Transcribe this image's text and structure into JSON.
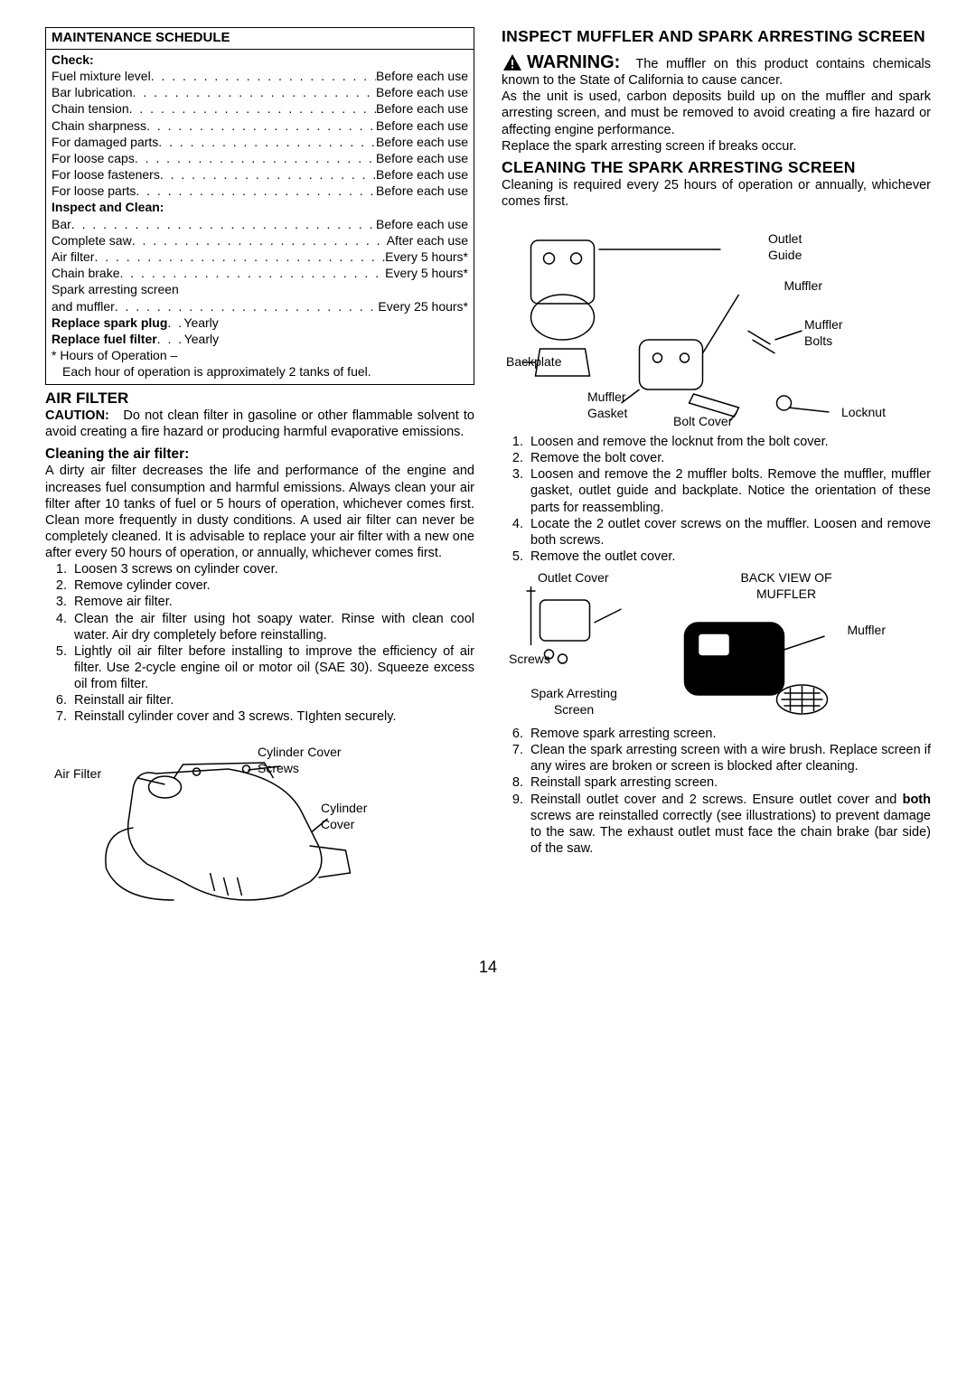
{
  "schedule": {
    "title": "MAINTENANCE SCHEDULE",
    "check_label": "Check:",
    "check_items": [
      {
        "name": "Fuel mixture level",
        "freq": "Before each use"
      },
      {
        "name": "Bar lubrication",
        "freq": "Before each use"
      },
      {
        "name": "Chain tension",
        "freq": "Before each use"
      },
      {
        "name": "Chain sharpness",
        "freq": "Before each use"
      },
      {
        "name": "For damaged parts",
        "freq": "Before each use"
      },
      {
        "name": "For loose caps",
        "freq": "Before each use"
      },
      {
        "name": "For loose fasteners",
        "freq": "Before each use"
      },
      {
        "name": "For loose parts",
        "freq": "Before each use"
      }
    ],
    "inspect_label": "Inspect and Clean:",
    "inspect_items": [
      {
        "name": "Bar",
        "freq": "Before each use"
      },
      {
        "name": "Complete saw",
        "freq": "After each use"
      },
      {
        "name": "Air filter",
        "freq": "Every 5 hours*"
      },
      {
        "name": "Chain brake",
        "freq": "Every 5 hours*"
      }
    ],
    "spark_line": "Spark arresting screen",
    "spark_row": {
      "name": "and muffler",
      "freq": "Every 25 hours*"
    },
    "replace_plug": {
      "name": "Replace spark plug",
      "freq": "Yearly"
    },
    "replace_filter": {
      "name": "Replace fuel filter",
      "freq": "Yearly"
    },
    "footnote1": "* Hours of Operation –",
    "footnote2": "Each hour of operation is approximately 2 tanks of fuel."
  },
  "airfilter": {
    "title": "AIR FILTER",
    "caution_label": "CAUTION:",
    "caution_text": "Do not clean filter in gasoline or other flammable solvent to avoid creating a fire hazard or producing harmful evaporative emissions.",
    "clean_title": "Cleaning the air filter:",
    "clean_para": "A dirty air filter decreases the life and performance of the engine and increases fuel consumption and harmful emissions. Always clean your air filter after 10 tanks of fuel or 5 hours of operation, whichever comes first. Clean more frequently in dusty conditions. A used air filter can never be completely cleaned. It is advisable to replace your air filter with a new one after every 50 hours of operation, or annually, whichever comes first.",
    "steps": [
      "Loosen 3 screws on cylinder cover.",
      "Remove cylinder cover.",
      "Remove air filter.",
      "Clean the air filter using hot soapy water. Rinse with clean cool water. Air dry completely before reinstalling.",
      "Lightly oil air filter before installing to improve the efficiency of air filter. Use 2-cycle engine oil or motor oil (SAE 30). Squeeze excess oil from filter.",
      "Reinstall air filter.",
      "Reinstall cylinder cover and 3 screws. TIghten securely."
    ],
    "labels": {
      "air_filter": "Air Filter",
      "cyl_cover_screws": "Cylinder Cover Screws",
      "cyl_cover": "Cylinder Cover"
    }
  },
  "muffler": {
    "title": "INSPECT MUFFLER AND SPARK ARRESTING SCREEN",
    "warning_label": "WARNING:",
    "warning_text": "The muffler on this product contains chemicals known to the State of California to cause cancer.",
    "para1": "As the unit is used, carbon deposits build up on the muffler and spark arresting screen, and must be removed to avoid creating a fire hazard or affecting engine performance.",
    "para2": "Replace the spark arresting screen if breaks occur.",
    "clean_title": "CLEANING THE SPARK ARRESTING SCREEN",
    "clean_text": "Cleaning is required every 25 hours of operation or annually, whichever comes first.",
    "labels1": {
      "outlet_guide": "Outlet Guide",
      "muffler": "Muffler",
      "muffler_bolts": "Muffler Bolts",
      "backplate": "Backplate",
      "muffler_gasket": "Muffler Gasket",
      "bolt_cover": "Bolt Cover",
      "locknut": "Locknut"
    },
    "steps1": [
      "Loosen and remove the locknut from the bolt cover.",
      "Remove the bolt cover.",
      "Loosen and remove the 2 muffler bolts. Remove the muffler, muffler gasket, outlet guide and backplate. Notice the orientation of these parts for reassembling.",
      "Locate the 2 outlet cover screws on the muffler. Loosen and remove both screws.",
      "Remove the outlet cover."
    ],
    "labels2": {
      "outlet_cover": "Outlet Cover",
      "back_view": "BACK VIEW OF MUFFLER",
      "muffler": "Muffler",
      "screws": "Screws",
      "spark_screen": "Spark Arresting Screen"
    },
    "steps2": [
      "Remove spark arresting screen.",
      "Clean the spark arresting screen with a wire brush. Replace screen if any wires are broken or screen is blocked after cleaning.",
      "Reinstall spark arresting screen.",
      "Reinstall outlet cover and 2 screws. Ensure outlet cover and <b>both</b> screws are reinstalled correctly (see illustrations) to prevent damage to the saw. The exhaust outlet must face the chain brake (bar side) of the saw."
    ]
  },
  "page_number": "14"
}
